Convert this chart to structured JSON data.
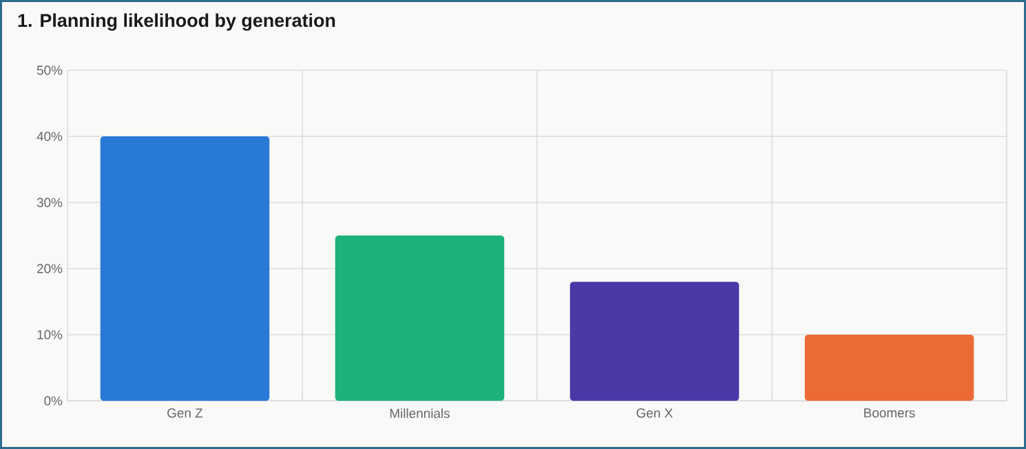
{
  "chart_data": {
    "type": "bar",
    "title": "1. Planning likelihood by generation",
    "categories": [
      "Gen Z",
      "Millennials",
      "Gen X",
      "Boomers"
    ],
    "values": [
      40,
      25,
      18,
      10
    ],
    "colors": [
      "#2979d6",
      "#1cb27a",
      "#4a3aa7",
      "#ec6a35"
    ],
    "ylim": [
      0,
      50
    ],
    "yticks": [
      {
        "value": 0,
        "label": "0%"
      },
      {
        "value": 10,
        "label": "10%"
      },
      {
        "value": 20,
        "label": "20%"
      },
      {
        "value": 30,
        "label": "30%"
      },
      {
        "value": 40,
        "label": "40%"
      },
      {
        "value": 50,
        "label": "50%"
      }
    ],
    "grid": true
  }
}
